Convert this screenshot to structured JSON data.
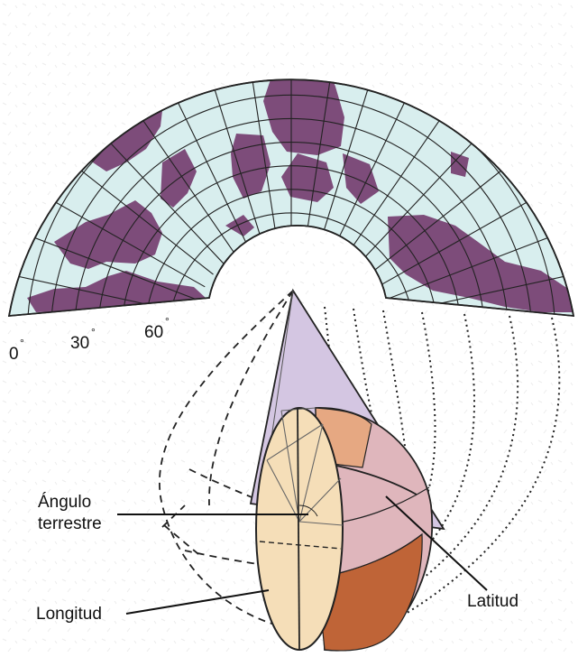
{
  "labels": {
    "lon_0": "0",
    "lon_30": "30",
    "lon_60": "60",
    "degree": "°",
    "angle_line1": "Ángulo",
    "angle_line2": "terrestre",
    "longitude": "Longitud",
    "latitude": "Latitud"
  },
  "colors": {
    "ocean": "#d8eeee",
    "land": "#7d4c7a",
    "cone": "#d4c6e2",
    "sphere_light": "#f5deb8",
    "sphere_peach": "#e6a882",
    "sphere_rust": "#bf6437",
    "sphere_pink": "#dfb6bc",
    "grid": "#222222",
    "background_texture": "#eeeeee"
  }
}
